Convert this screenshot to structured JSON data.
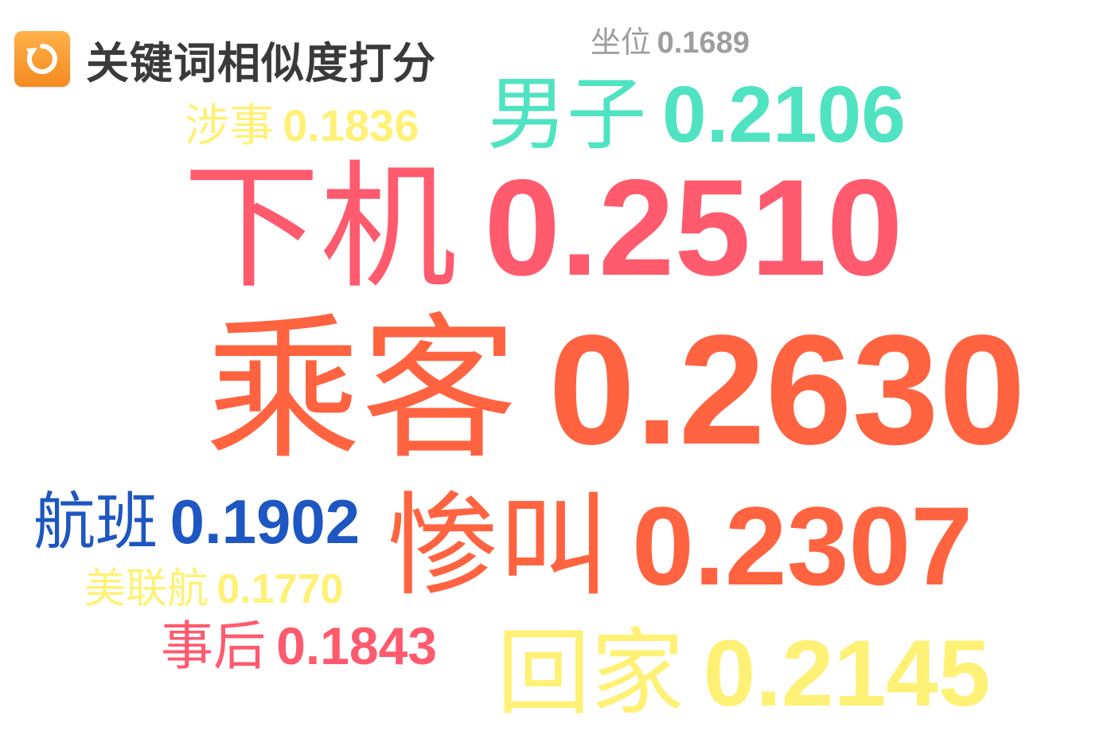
{
  "header": {
    "title": "关键词相似度打分",
    "icon": "refresh-icon"
  },
  "keywords": [
    {
      "word": "坐位",
      "score": "0.1689",
      "color": "#9e9e9e"
    },
    {
      "word": "男子",
      "score": "0.2106",
      "color": "#4fe3c1"
    },
    {
      "word": "涉事",
      "score": "0.1836",
      "color": "#fff176"
    },
    {
      "word": "下机",
      "score": "0.2510",
      "color": "#ff5a6e"
    },
    {
      "word": "乘客",
      "score": "0.2630",
      "color": "#ff6340"
    },
    {
      "word": "航班",
      "score": "0.1902",
      "color": "#1e56c2"
    },
    {
      "word": "惨叫",
      "score": "0.2307",
      "color": "#ff6340"
    },
    {
      "word": "美联航",
      "score": "0.1770",
      "color": "#fff176"
    },
    {
      "word": "事后",
      "score": "0.1843",
      "color": "#ff5a6e"
    },
    {
      "word": "回家",
      "score": "0.2145",
      "color": "#fff176"
    }
  ]
}
